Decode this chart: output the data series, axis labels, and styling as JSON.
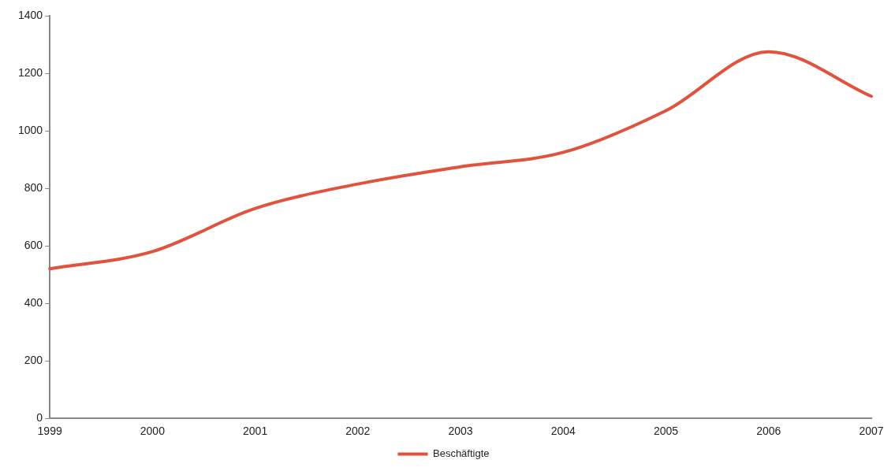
{
  "chart_data": {
    "type": "line",
    "categories": [
      "1999",
      "2000",
      "2001",
      "2002",
      "2003",
      "2004",
      "2005",
      "2006",
      "2007"
    ],
    "series": [
      {
        "name": "Beschäftigte",
        "color": "#e0533f",
        "values": [
          520,
          580,
          730,
          815,
          875,
          925,
          1070,
          1275,
          1120
        ]
      }
    ],
    "ylim": [
      0,
      1400
    ],
    "yticks": [
      0,
      200,
      400,
      600,
      800,
      1000,
      1200,
      1400
    ],
    "grid": false,
    "legend": "bottom",
    "marker": "none",
    "line_style": "solid"
  }
}
